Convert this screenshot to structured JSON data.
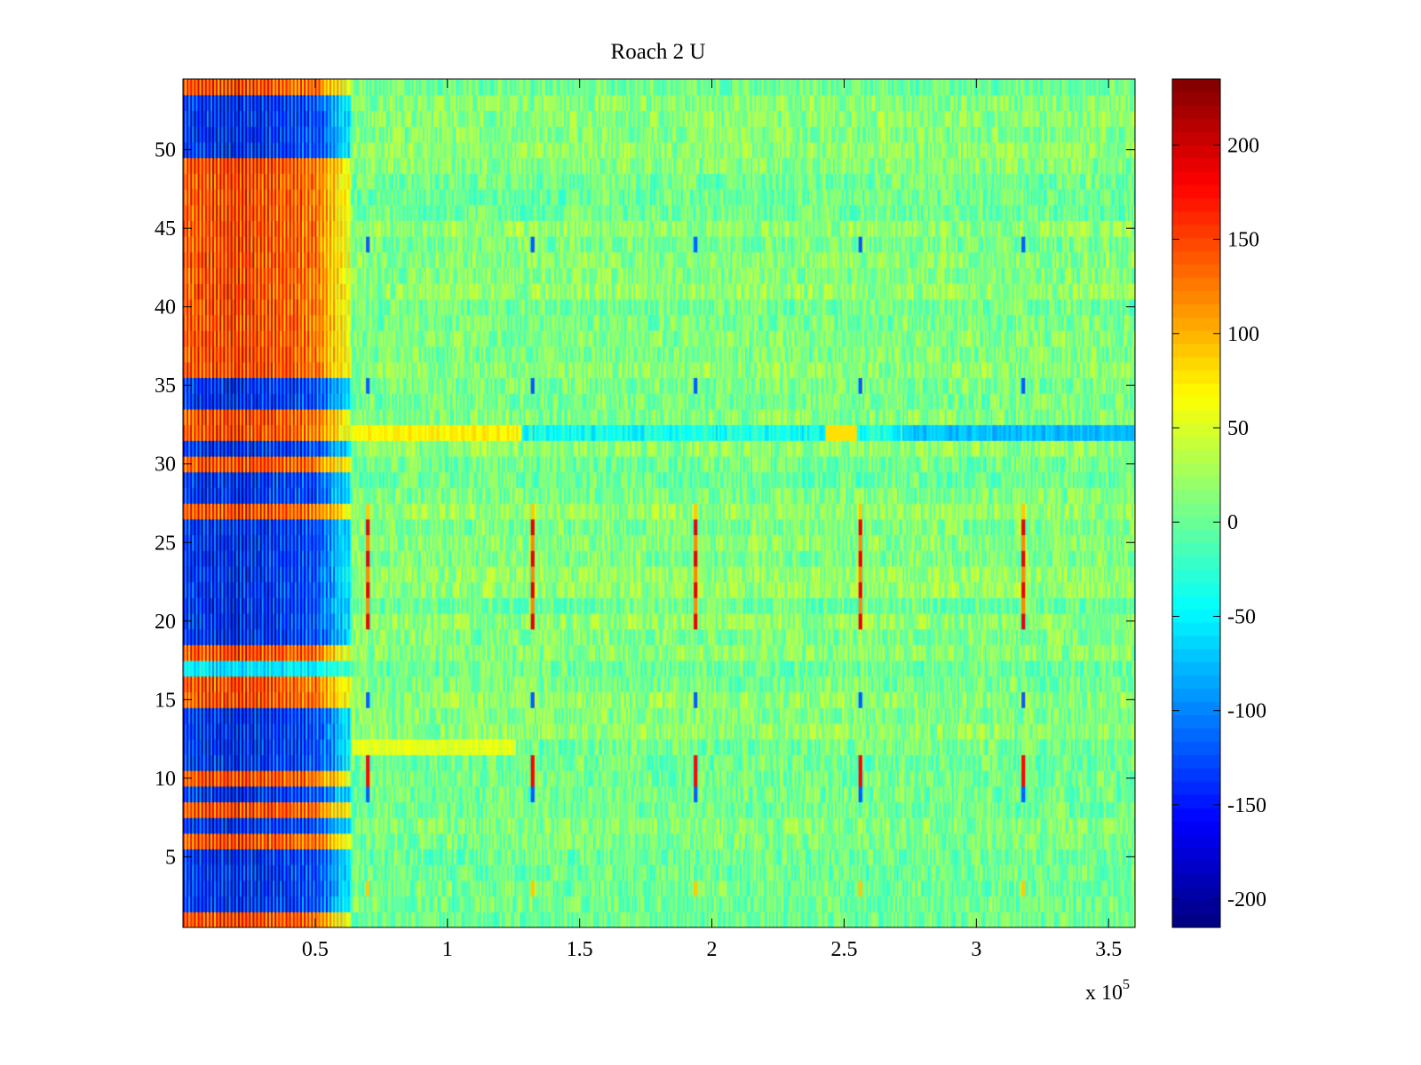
{
  "chart_data": {
    "type": "heatmap",
    "title": "Roach 2 U",
    "xlabel": "",
    "ylabel": "",
    "x_range": [
      0,
      360000
    ],
    "y_range": [
      0.5,
      54.5
    ],
    "rows": 54,
    "columns": 520,
    "x_exponent_label": "x 10",
    "x_exponent_power": "5",
    "x_ticks": [
      {
        "value": 50000,
        "label": "0.5"
      },
      {
        "value": 100000,
        "label": "1"
      },
      {
        "value": 150000,
        "label": "1.5"
      },
      {
        "value": 200000,
        "label": "2"
      },
      {
        "value": 250000,
        "label": "2.5"
      },
      {
        "value": 300000,
        "label": "3"
      },
      {
        "value": 350000,
        "label": "3.5"
      }
    ],
    "y_ticks": [
      {
        "value": 5,
        "label": "5"
      },
      {
        "value": 10,
        "label": "10"
      },
      {
        "value": 15,
        "label": "15"
      },
      {
        "value": 20,
        "label": "20"
      },
      {
        "value": 25,
        "label": "25"
      },
      {
        "value": 30,
        "label": "30"
      },
      {
        "value": 35,
        "label": "35"
      },
      {
        "value": 40,
        "label": "40"
      },
      {
        "value": 45,
        "label": "45"
      },
      {
        "value": 50,
        "label": "50"
      }
    ],
    "colorbar": {
      "colormap": "jet",
      "range": [
        -215,
        235
      ],
      "ticks": [
        {
          "value": 200,
          "label": "200"
        },
        {
          "value": 150,
          "label": "150"
        },
        {
          "value": 100,
          "label": "100"
        },
        {
          "value": 50,
          "label": "50"
        },
        {
          "value": 0,
          "label": "0"
        },
        {
          "value": -50,
          "label": "-50"
        },
        {
          "value": -100,
          "label": "-100"
        },
        {
          "value": -150,
          "label": "-150"
        },
        {
          "value": -200,
          "label": "-200"
        }
      ]
    },
    "features": {
      "high_amplitude_region_x": [
        0,
        64000
      ],
      "high_amplitude_peak_x": 20000,
      "background_level": 10,
      "periodic_spike_x": [
        70000,
        132000,
        194000,
        256000,
        318000
      ],
      "row_32_positive_band_x": [
        64000,
        128000
      ],
      "row_32_negative_band_x": [
        272000,
        360000
      ],
      "row_12_positive_band_x": [
        64000,
        126000
      ]
    }
  }
}
